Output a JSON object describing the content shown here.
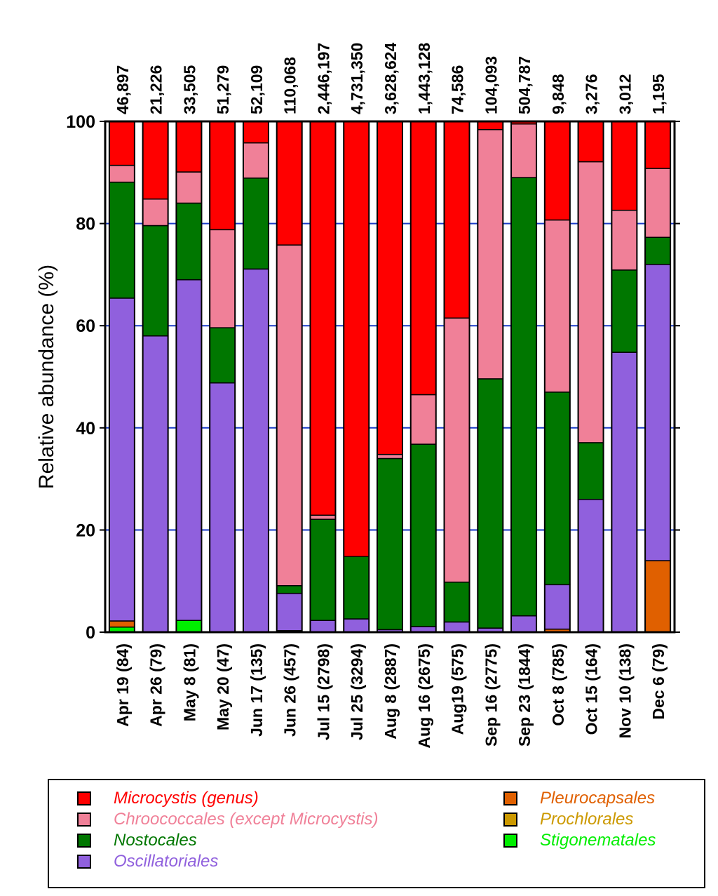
{
  "chart_data": {
    "type": "bar",
    "stacked": true,
    "ylabel": "Relative abundance (%)",
    "ylim": [
      0,
      100
    ],
    "yticks": [
      "0",
      "20",
      "40",
      "60",
      "80",
      "100"
    ],
    "grid": "horizontal (blue)",
    "legend_position": "bottom",
    "categories": [
      "Apr 19 (84)",
      "Apr 26 (79)",
      "May 8 (81)",
      "May 20 (47)",
      "Jun 17 (135)",
      "Jun 26 (457)",
      "Jul 15 (2798)",
      "Jul 25 (3294)",
      "Aug 8 (2887)",
      "Aug 16 (2675)",
      "Aug19 (575)",
      "Sep 16 (2775)",
      "Sep 23 (1844)",
      "Oct 8 (785)",
      "Oct 15 (164)",
      "Nov 10 (138)",
      "Dec 6 (79)"
    ],
    "top_labels": [
      "46,897",
      "21,226",
      "33,505",
      "51,279",
      "52,109",
      "110,068",
      "2,446,197",
      "4,731,350",
      "3,628,624",
      "1,443,128",
      "74,586",
      "104,093",
      "504,787",
      "9,848",
      "3,276",
      "3,012",
      "1,195"
    ],
    "series": [
      {
        "name": "Stigonematales",
        "color": "#00ee00",
        "values": [
          1.0,
          0,
          2.3,
          0,
          0,
          0,
          0,
          0,
          0,
          0,
          0,
          0,
          0,
          0,
          0,
          0,
          0
        ]
      },
      {
        "name": "Pleurocapsales",
        "color": "#e06000",
        "values": [
          1.2,
          0,
          0,
          0,
          0,
          0,
          0,
          0,
          0,
          0,
          0,
          0,
          0,
          0.6,
          0,
          0,
          14.0
        ]
      },
      {
        "name": "Prochlorales",
        "color": "#cc9900",
        "values": [
          0,
          0,
          0,
          0,
          0,
          0.3,
          0,
          0,
          0,
          0,
          0,
          0,
          0,
          0,
          0,
          0,
          0
        ]
      },
      {
        "name": "Oscillatoriales",
        "color": "#9060dd",
        "values": [
          63.2,
          58.0,
          66.7,
          48.8,
          71.1,
          7.3,
          2.3,
          2.6,
          0.5,
          1.1,
          2.0,
          0.8,
          3.2,
          8.7,
          26.0,
          54.8,
          58.0
        ]
      },
      {
        "name": "Nostocales",
        "color": "#007700",
        "values": [
          22.7,
          21.6,
          15.0,
          10.8,
          17.8,
          1.5,
          19.8,
          12.2,
          33.5,
          35.7,
          7.8,
          48.8,
          85.8,
          37.7,
          11.1,
          16.1,
          5.3
        ]
      },
      {
        "name": "Chroococcales (except Microcystis)",
        "color": "#f08098",
        "values": [
          3.3,
          5.2,
          6.1,
          19.2,
          6.9,
          66.7,
          0.8,
          0,
          0.8,
          9.7,
          51.7,
          48.8,
          10.5,
          33.7,
          55.0,
          11.7,
          13.5
        ]
      },
      {
        "name": "Microcystis (genus)",
        "color": "#ff0000",
        "values": [
          8.6,
          15.2,
          9.9,
          21.2,
          4.2,
          24.2,
          77.1,
          85.2,
          65.2,
          53.5,
          38.5,
          1.6,
          0.5,
          19.3,
          7.9,
          17.4,
          9.2
        ]
      }
    ],
    "legend": [
      {
        "label": "Microcystis (genus)",
        "color": "#ff0000"
      },
      {
        "label": "Chroococcales (except Microcystis)",
        "color": "#f08098"
      },
      {
        "label": "Nostocales",
        "color": "#007700"
      },
      {
        "label": "Oscillatoriales",
        "color": "#9060dd"
      },
      {
        "label": "Pleurocapsales",
        "color": "#e06000"
      },
      {
        "label": "Prochlorales",
        "color": "#cc9900"
      },
      {
        "label": "Stigonematales",
        "color": "#00ee00"
      }
    ]
  }
}
